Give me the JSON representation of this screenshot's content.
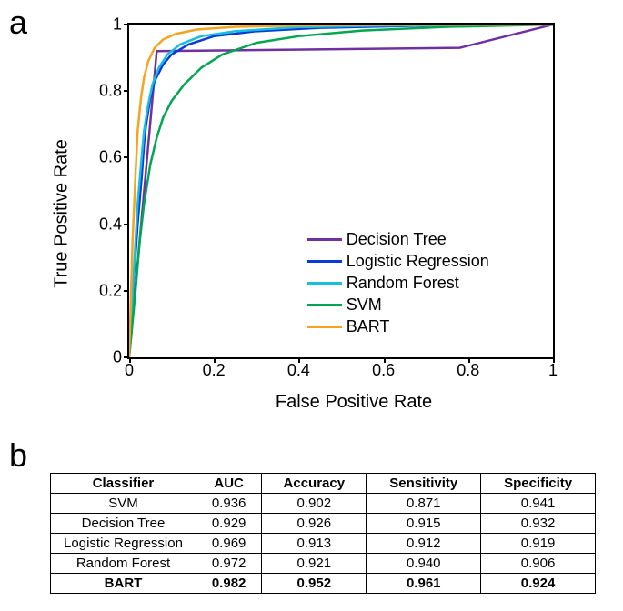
{
  "panel_labels": {
    "a": "a",
    "b": "b"
  },
  "chart": {
    "type": "line",
    "title": "",
    "xlabel": "False Positive Rate",
    "ylabel": "True Positive Rate",
    "xlim": [
      0,
      1
    ],
    "ylim": [
      0,
      1
    ],
    "xticks": [
      0,
      0.2,
      0.4,
      0.6,
      0.8,
      1
    ],
    "yticks": [
      0,
      0.2,
      0.4,
      0.6,
      0.8,
      1
    ],
    "xtick_labels": [
      "0",
      "0.2",
      "0.4",
      "0.6",
      "0.8",
      "1"
    ],
    "ytick_labels": [
      "0",
      "0.2",
      "0.4",
      "0.6",
      "0.8",
      "1"
    ],
    "background_color": "#ffffff",
    "border_color": "#000000",
    "label_fontsize": 20,
    "tick_fontsize": 18,
    "line_width": 2.5,
    "legend_fontsize": 18,
    "legend_position": "lower-right",
    "series": [
      {
        "name": "Decision Tree",
        "color": "#7030a0",
        "points": [
          [
            0,
            0
          ],
          [
            0.065,
            0.92
          ],
          [
            0.78,
            0.93
          ],
          [
            1,
            1
          ]
        ]
      },
      {
        "name": "Logistic Regression",
        "color": "#0a3bd6",
        "points": [
          [
            0,
            0
          ],
          [
            0.01,
            0.22
          ],
          [
            0.02,
            0.4
          ],
          [
            0.03,
            0.55
          ],
          [
            0.035,
            0.64
          ],
          [
            0.04,
            0.7
          ],
          [
            0.05,
            0.78
          ],
          [
            0.06,
            0.83
          ],
          [
            0.08,
            0.88
          ],
          [
            0.1,
            0.91
          ],
          [
            0.14,
            0.94
          ],
          [
            0.2,
            0.965
          ],
          [
            0.3,
            0.98
          ],
          [
            0.45,
            0.99
          ],
          [
            0.7,
            0.997
          ],
          [
            1,
            1
          ]
        ]
      },
      {
        "name": "Random Forest",
        "color": "#17bfde",
        "points": [
          [
            0,
            0
          ],
          [
            0.012,
            0.28
          ],
          [
            0.02,
            0.46
          ],
          [
            0.028,
            0.58
          ],
          [
            0.035,
            0.68
          ],
          [
            0.045,
            0.76
          ],
          [
            0.055,
            0.82
          ],
          [
            0.07,
            0.87
          ],
          [
            0.09,
            0.91
          ],
          [
            0.12,
            0.94
          ],
          [
            0.17,
            0.965
          ],
          [
            0.25,
            0.98
          ],
          [
            0.4,
            0.992
          ],
          [
            0.6,
            0.997
          ],
          [
            1,
            1
          ]
        ]
      },
      {
        "name": "SVM",
        "color": "#00a650",
        "points": [
          [
            0,
            0
          ],
          [
            0.015,
            0.2
          ],
          [
            0.025,
            0.35
          ],
          [
            0.035,
            0.46
          ],
          [
            0.05,
            0.58
          ],
          [
            0.065,
            0.66
          ],
          [
            0.08,
            0.72
          ],
          [
            0.1,
            0.77
          ],
          [
            0.13,
            0.82
          ],
          [
            0.17,
            0.87
          ],
          [
            0.22,
            0.91
          ],
          [
            0.3,
            0.945
          ],
          [
            0.4,
            0.965
          ],
          [
            0.55,
            0.982
          ],
          [
            0.75,
            0.993
          ],
          [
            1,
            1
          ]
        ]
      },
      {
        "name": "BART",
        "color": "#f6a320",
        "points": [
          [
            0,
            0
          ],
          [
            0.008,
            0.35
          ],
          [
            0.015,
            0.55
          ],
          [
            0.02,
            0.68
          ],
          [
            0.028,
            0.78
          ],
          [
            0.035,
            0.84
          ],
          [
            0.045,
            0.89
          ],
          [
            0.06,
            0.93
          ],
          [
            0.08,
            0.955
          ],
          [
            0.11,
            0.972
          ],
          [
            0.16,
            0.985
          ],
          [
            0.25,
            0.993
          ],
          [
            0.4,
            0.997
          ],
          [
            0.6,
            0.999
          ],
          [
            1,
            1
          ]
        ]
      }
    ]
  },
  "table": {
    "columns": [
      "Classifier",
      "AUC",
      "Accuracy",
      "Sensitivity",
      "Specificity"
    ],
    "rows": [
      [
        "SVM",
        "0.936",
        "0.902",
        "0.871",
        "0.941"
      ],
      [
        "Decision Tree",
        "0.929",
        "0.926",
        "0.915",
        "0.932"
      ],
      [
        "Logistic Regression",
        "0.969",
        "0.913",
        "0.912",
        "0.919"
      ],
      [
        "Random Forest",
        "0.972",
        "0.921",
        "0.940",
        "0.906"
      ],
      [
        "BART",
        "0.982",
        "0.952",
        "0.961",
        "0.924"
      ]
    ],
    "bold_rows": [
      4
    ],
    "border_color": "#000000",
    "fontsize": 15,
    "header_bold": true
  }
}
